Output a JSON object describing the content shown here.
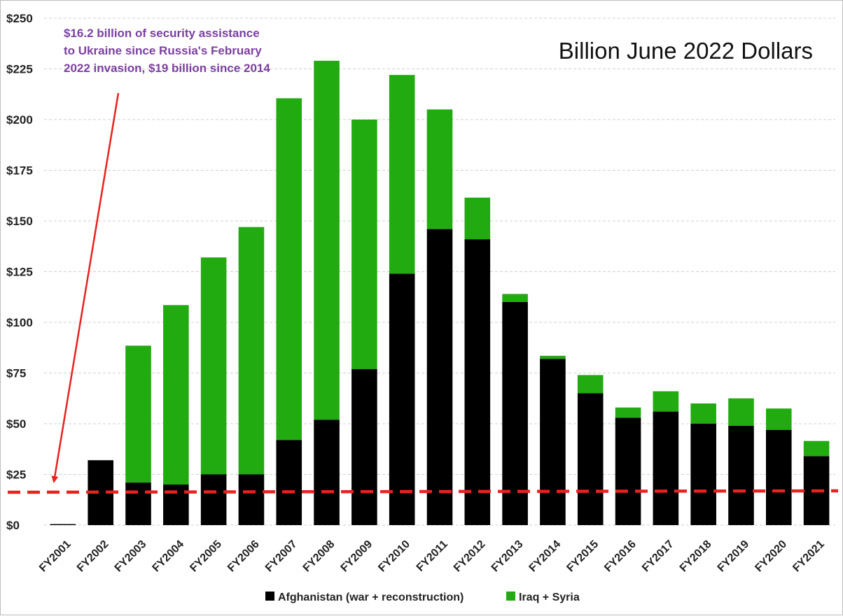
{
  "chart_data": {
    "type": "bar",
    "stacked": true,
    "unit_label": "Billion June 2022 Dollars",
    "annotation": [
      "$16.2 billion of security assistance",
      "to Ukraine since Russia's February",
      "2022 invasion,  $19 billion since 2014"
    ],
    "categories": [
      "FY2001",
      "FY2002",
      "FY2003",
      "FY2004",
      "FY2005",
      "FY2006",
      "FY2007",
      "FY2008",
      "FY2009",
      "FY2010",
      "FY2011",
      "FY2012",
      "FY2013",
      "FY2014",
      "FY2015",
      "FY2016",
      "FY2017",
      "FY2018",
      "FY2019",
      "FY2020",
      "FY2021"
    ],
    "series": [
      {
        "name": "Afghanistan (war + reconstruction)",
        "color": "#000000",
        "values": [
          0.5,
          32,
          21,
          20,
          25,
          25,
          42,
          52,
          77,
          124,
          146,
          141,
          110,
          82,
          65,
          53,
          56,
          50,
          49,
          47,
          34
        ]
      },
      {
        "name": "Iraq + Syria",
        "color": "#22aa11",
        "values": [
          0,
          0,
          67.5,
          88.5,
          107,
          122,
          168.5,
          177,
          123,
          98,
          59,
          20.5,
          4,
          1.5,
          9,
          5,
          10,
          10,
          13.5,
          10.5,
          7.5
        ]
      }
    ],
    "reference_line": {
      "value": 16.2,
      "color": "#e8221e",
      "style": "dashed"
    },
    "ylim": [
      0,
      250
    ],
    "yticks": [
      0,
      25,
      50,
      75,
      100,
      125,
      150,
      175,
      200,
      225,
      250
    ],
    "ytick_labels": [
      "$0",
      "$25",
      "$50",
      "$75",
      "$100",
      "$125",
      "$150",
      "$175",
      "$200",
      "$225",
      "$250"
    ],
    "grid": true,
    "legend_position": "bottom-center",
    "annotation_color": "#7b3fa0",
    "arrow_color": "#e8221e"
  }
}
